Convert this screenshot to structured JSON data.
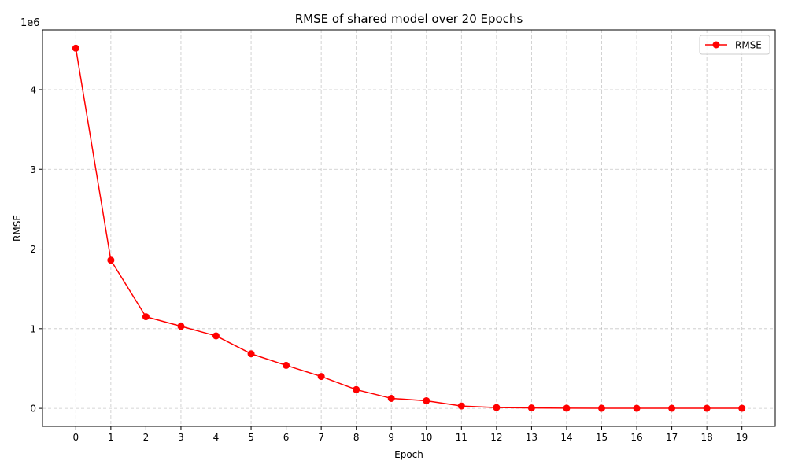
{
  "chart_data": {
    "type": "line",
    "title": "RMSE of shared model over 20 Epochs",
    "xlabel": "Epoch",
    "ylabel": "RMSE",
    "y_offset_label": "1e6",
    "x": [
      0,
      1,
      2,
      3,
      4,
      5,
      6,
      7,
      8,
      9,
      10,
      11,
      12,
      13,
      14,
      15,
      16,
      17,
      18,
      19
    ],
    "x_ticks": [
      "0",
      "1",
      "2",
      "3",
      "4",
      "5",
      "6",
      "7",
      "8",
      "9",
      "10",
      "11",
      "12",
      "13",
      "14",
      "15",
      "16",
      "17",
      "18",
      "19"
    ],
    "y_ticks": [
      {
        "value": 0,
        "label": "0"
      },
      {
        "value": 1000000,
        "label": "1"
      },
      {
        "value": 2000000,
        "label": "2"
      },
      {
        "value": 3000000,
        "label": "3"
      },
      {
        "value": 4000000,
        "label": "4"
      }
    ],
    "xlim": [
      -0.95,
      19.95
    ],
    "ylim": [
      -226000,
      4750000
    ],
    "grid": true,
    "legend_position": "top-right",
    "series": [
      {
        "name": "RMSE",
        "color": "#ff0000",
        "marker": "circle",
        "values": [
          4520000,
          1860000,
          1150000,
          1030000,
          910000,
          685000,
          540000,
          400000,
          235000,
          125000,
          95000,
          30000,
          10000,
          5000,
          2000,
          1500,
          1000,
          1000,
          500,
          500
        ]
      }
    ]
  }
}
